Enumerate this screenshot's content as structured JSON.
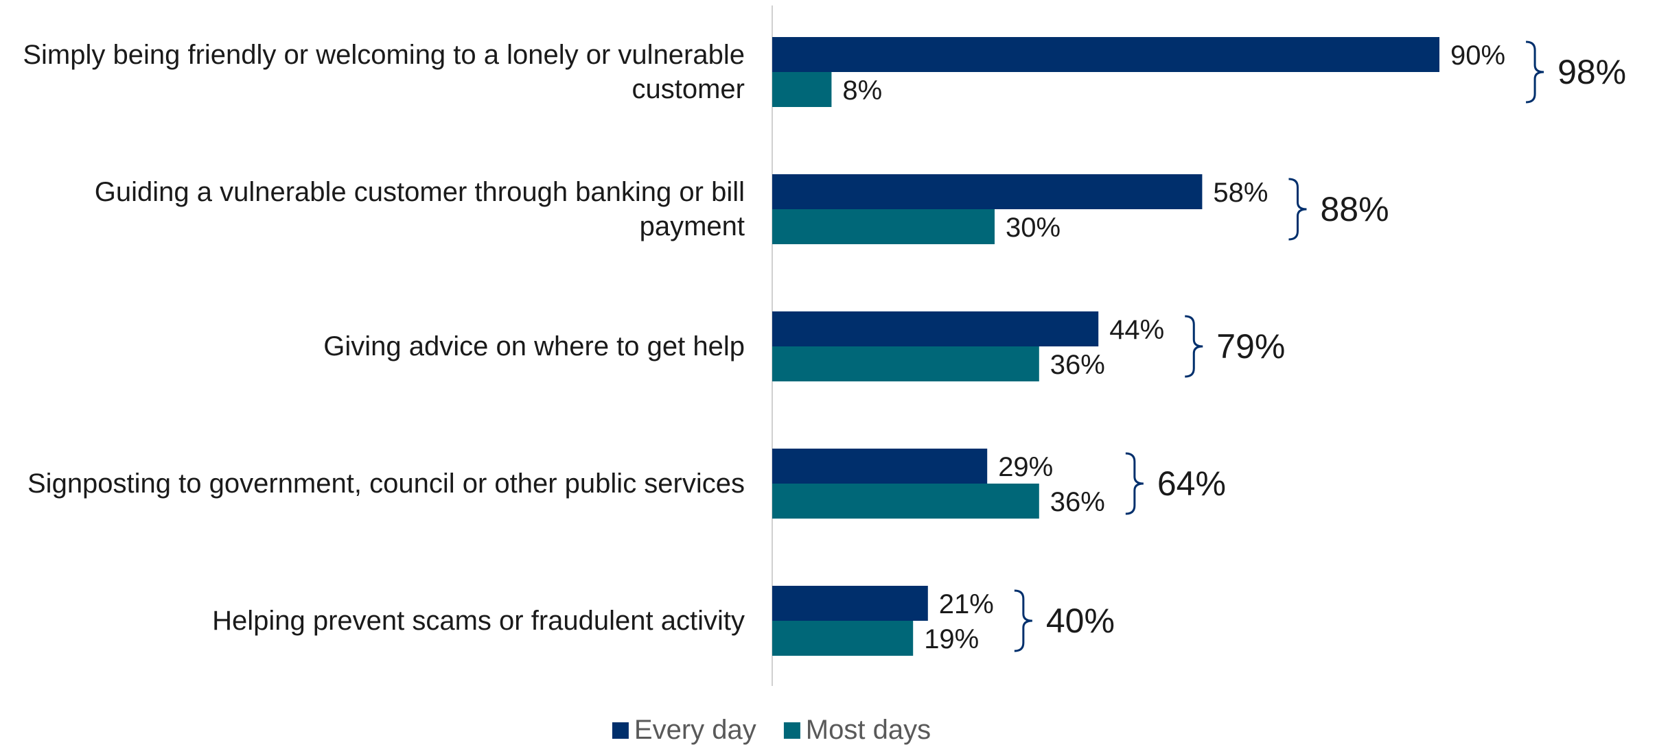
{
  "chart_data": {
    "type": "grouped-hbar",
    "categories": [
      "Simply being friendly or welcoming to a lonely or vulnerable customer",
      "Guiding a vulnerable customer through banking or bill payment",
      "Giving advice on where to get help",
      "Signposting to government, council or other public services",
      "Helping prevent scams or fraudulent activity"
    ],
    "series": [
      {
        "name": "Every day",
        "color": "#002f6c",
        "values": [
          90,
          58,
          44,
          29,
          21
        ],
        "value_labels": [
          "90%",
          "58%",
          "44%",
          "29%",
          "21%"
        ]
      },
      {
        "name": "Most days",
        "color": "#006778",
        "values": [
          8,
          30,
          36,
          36,
          19
        ],
        "value_labels": [
          "8%",
          "30%",
          "36%",
          "36%",
          "19%"
        ]
      }
    ],
    "totals": {
      "values": [
        98,
        88,
        79,
        64,
        40
      ],
      "value_labels": [
        "98%",
        "88%",
        "79%",
        "64%",
        "40%"
      ],
      "color": "#002f6c"
    },
    "xlim": [
      0,
      100
    ]
  }
}
